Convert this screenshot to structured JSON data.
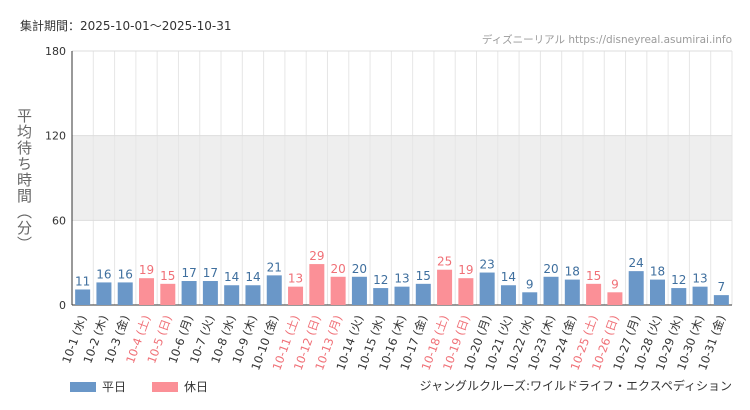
{
  "header": {
    "period": "集計期間：2025-10-01～2025-10-31",
    "site": "ディズニーリアル https://disneyreal.asumirai.info"
  },
  "footer": {
    "attraction": "ジャングルクルーズ:ワイルドライフ・エクスペディション"
  },
  "colors": {
    "weekday": "#6a97c8",
    "holiday": "#fb9097",
    "weekday_label": "#3f6f9e",
    "holiday_label": "#f07077",
    "band": "#eeeeee"
  },
  "chart_data": {
    "type": "bar",
    "ylabel": "平均待ち時間（分）",
    "ylim": [
      0,
      180
    ],
    "yticks": [
      0,
      60,
      120,
      180
    ],
    "shaded_bands": [
      [
        60,
        120
      ]
    ],
    "grid": true,
    "legend": {
      "placement": "bottom-left",
      "entries": [
        {
          "label": "平日",
          "color": "#6a97c8"
        },
        {
          "label": "休日",
          "color": "#fb9097"
        }
      ]
    },
    "categories": [
      "10-1 (水)",
      "10-2 (木)",
      "10-3 (金)",
      "10-4 (土)",
      "10-5 (日)",
      "10-6 (月)",
      "10-7 (火)",
      "10-8 (水)",
      "10-9 (木)",
      "10-10 (金)",
      "10-11 (土)",
      "10-12 (日)",
      "10-13 (月)",
      "10-14 (火)",
      "10-15 (水)",
      "10-16 (木)",
      "10-17 (金)",
      "10-18 (土)",
      "10-19 (日)",
      "10-20 (月)",
      "10-21 (火)",
      "10-22 (水)",
      "10-23 (木)",
      "10-24 (金)",
      "10-25 (土)",
      "10-26 (日)",
      "10-27 (月)",
      "10-28 (火)",
      "10-29 (水)",
      "10-30 (木)",
      "10-31 (金)"
    ],
    "values": [
      11,
      16,
      16,
      19,
      15,
      17,
      17,
      14,
      14,
      21,
      13,
      29,
      20,
      20,
      12,
      13,
      15,
      25,
      19,
      23,
      14,
      9,
      20,
      18,
      15,
      9,
      24,
      18,
      12,
      13,
      7
    ],
    "day_type": [
      "平日",
      "平日",
      "平日",
      "休日",
      "休日",
      "平日",
      "平日",
      "平日",
      "平日",
      "平日",
      "休日",
      "休日",
      "休日",
      "平日",
      "平日",
      "平日",
      "平日",
      "休日",
      "休日",
      "平日",
      "平日",
      "平日",
      "平日",
      "平日",
      "休日",
      "休日",
      "平日",
      "平日",
      "平日",
      "平日",
      "平日"
    ]
  }
}
